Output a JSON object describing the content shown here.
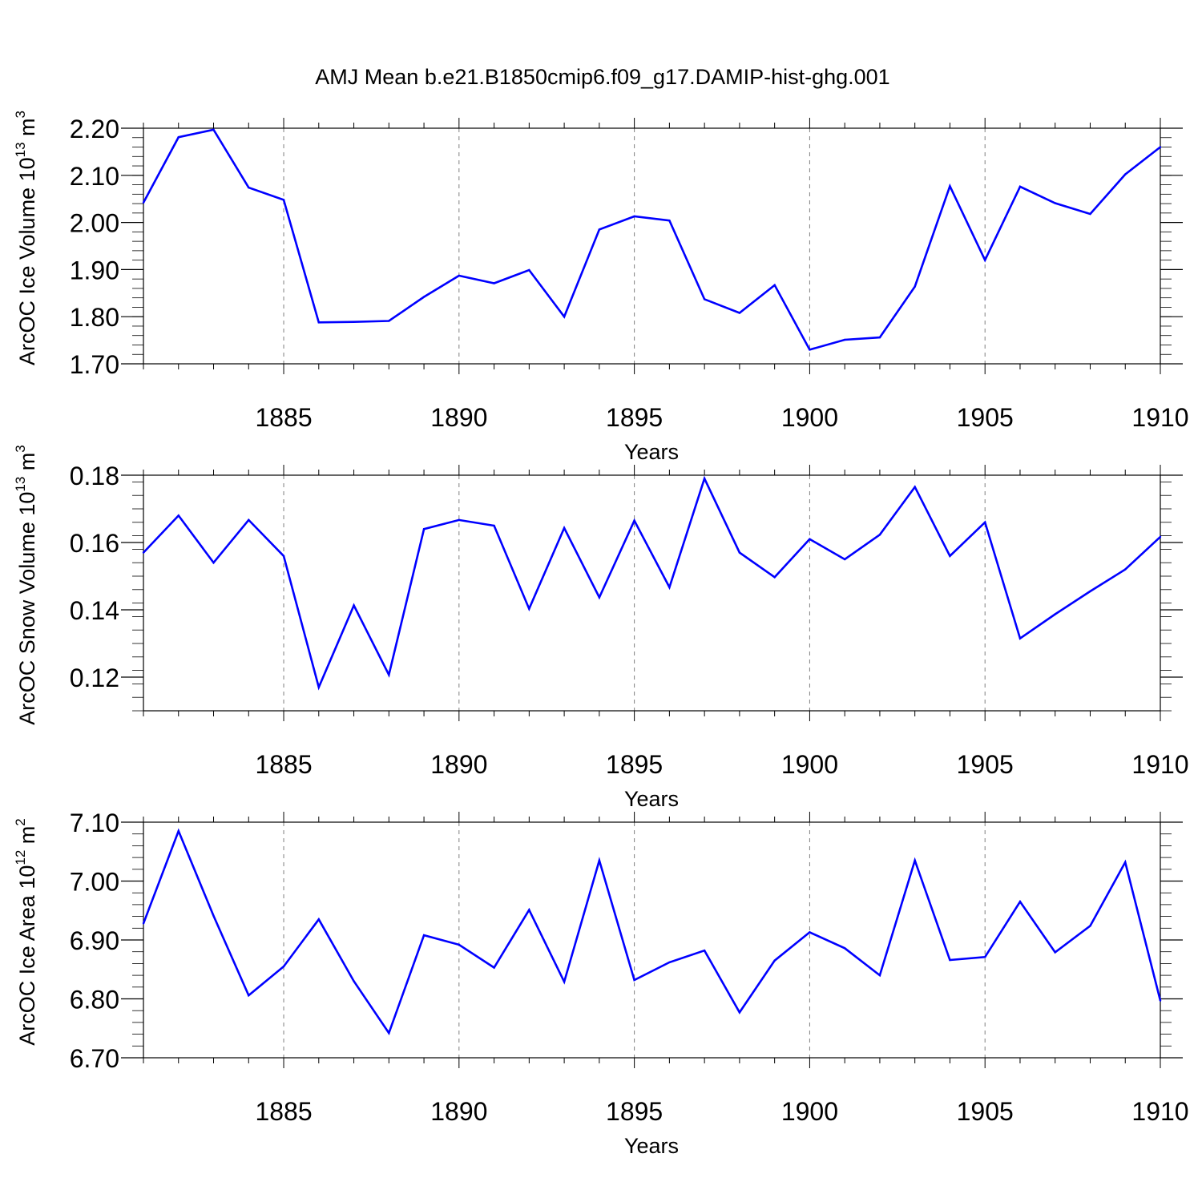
{
  "title": "AMJ Mean b.e21.B1850cmip6.f09_g17.DAMIP-hist-ghg.001",
  "colors": {
    "line": "#0000ff",
    "axis": "#000000",
    "grid": "#7f7f7f",
    "background": "#ffffff"
  },
  "chart_data": [
    {
      "type": "line",
      "panel": "ice-volume",
      "ylabel": {
        "text": "ArcOC Ice Volume 10",
        "sup": "13",
        "unit": " m",
        "unit_sup": "3"
      },
      "xlabel": "Years",
      "xlim": [
        1881,
        1910
      ],
      "ylim": [
        1.7,
        2.2
      ],
      "xticks": [
        1885,
        1890,
        1895,
        1900,
        1905,
        1910
      ],
      "xtick_labels": [
        "1885",
        "1890",
        "1895",
        "1900",
        "1905",
        "1910"
      ],
      "yticks": [
        1.7,
        1.8,
        1.9,
        2.0,
        2.1,
        2.2
      ],
      "ytick_labels": [
        "1.70",
        "1.80",
        "1.90",
        "2.00",
        "2.10",
        "2.20"
      ],
      "yminor_step": 0.02,
      "grid": "vertical dashed at major x ticks",
      "x": [
        1881,
        1882,
        1883,
        1884,
        1885,
        1886,
        1887,
        1888,
        1889,
        1890,
        1891,
        1892,
        1893,
        1894,
        1895,
        1896,
        1897,
        1898,
        1899,
        1900,
        1901,
        1902,
        1903,
        1904,
        1905,
        1906,
        1907,
        1908,
        1909,
        1910
      ],
      "values": [
        2.042,
        2.181,
        2.197,
        2.074,
        2.048,
        1.788,
        1.789,
        1.791,
        1.842,
        1.887,
        1.871,
        1.899,
        1.8,
        1.985,
        2.013,
        2.004,
        1.837,
        1.808,
        1.867,
        1.73,
        1.751,
        1.756,
        1.864,
        2.077,
        1.92,
        2.076,
        2.041,
        2.018,
        2.102,
        2.16
      ]
    },
    {
      "type": "line",
      "panel": "snow-volume",
      "ylabel": {
        "text": "ArcOC Snow Volume 10",
        "sup": "13",
        "unit": " m",
        "unit_sup": "3"
      },
      "xlabel": "Years",
      "xlim": [
        1881,
        1910
      ],
      "ylim": [
        0.11,
        0.18
      ],
      "xticks": [
        1885,
        1890,
        1895,
        1900,
        1905,
        1910
      ],
      "xtick_labels": [
        "1885",
        "1890",
        "1895",
        "1900",
        "1905",
        "1910"
      ],
      "yticks": [
        0.12,
        0.14,
        0.16,
        0.18
      ],
      "ytick_labels": [
        "0.12",
        "0.14",
        "0.16",
        "0.18"
      ],
      "yminor_step": 0.004,
      "grid": "vertical dashed at major x ticks",
      "x": [
        1881,
        1882,
        1883,
        1884,
        1885,
        1886,
        1887,
        1888,
        1889,
        1890,
        1891,
        1892,
        1893,
        1894,
        1895,
        1896,
        1897,
        1898,
        1899,
        1900,
        1901,
        1902,
        1903,
        1904,
        1905,
        1906,
        1907,
        1908,
        1909,
        1910
      ],
      "values": [
        0.157,
        0.168,
        0.154,
        0.1667,
        0.156,
        0.117,
        0.1413,
        0.1207,
        0.164,
        0.1667,
        0.165,
        0.1403,
        0.1643,
        0.1437,
        0.1665,
        0.1467,
        0.179,
        0.157,
        0.1497,
        0.161,
        0.155,
        0.1623,
        0.1765,
        0.156,
        0.166,
        0.1315,
        0.1387,
        0.1455,
        0.152,
        0.1617
      ]
    },
    {
      "type": "line",
      "panel": "ice-area",
      "ylabel": {
        "text": "ArcOC Ice Area 10",
        "sup": "12",
        "unit": " m",
        "unit_sup": "2"
      },
      "xlabel": "Years",
      "xlim": [
        1881,
        1910
      ],
      "ylim": [
        6.7,
        7.1
      ],
      "xticks": [
        1885,
        1890,
        1895,
        1900,
        1905,
        1910
      ],
      "xtick_labels": [
        "1885",
        "1890",
        "1895",
        "1900",
        "1905",
        "1910"
      ],
      "yticks": [
        6.7,
        6.8,
        6.9,
        7.0,
        7.1
      ],
      "ytick_labels": [
        "6.70",
        "6.80",
        "6.90",
        "7.00",
        "7.10"
      ],
      "yminor_step": 0.02,
      "grid": "vertical dashed at major x ticks",
      "x": [
        1881,
        1882,
        1883,
        1884,
        1885,
        1886,
        1887,
        1888,
        1889,
        1890,
        1891,
        1892,
        1893,
        1894,
        1895,
        1896,
        1897,
        1898,
        1899,
        1900,
        1901,
        1902,
        1903,
        1904,
        1905,
        1906,
        1907,
        1908,
        1909,
        1910
      ],
      "values": [
        6.928,
        7.085,
        6.941,
        6.806,
        6.855,
        6.935,
        6.83,
        6.742,
        6.908,
        6.892,
        6.853,
        6.951,
        6.829,
        7.035,
        6.832,
        6.862,
        6.882,
        6.777,
        6.865,
        6.913,
        6.886,
        6.84,
        7.035,
        6.866,
        6.871,
        6.965,
        6.879,
        6.924,
        7.032,
        6.797
      ]
    }
  ]
}
